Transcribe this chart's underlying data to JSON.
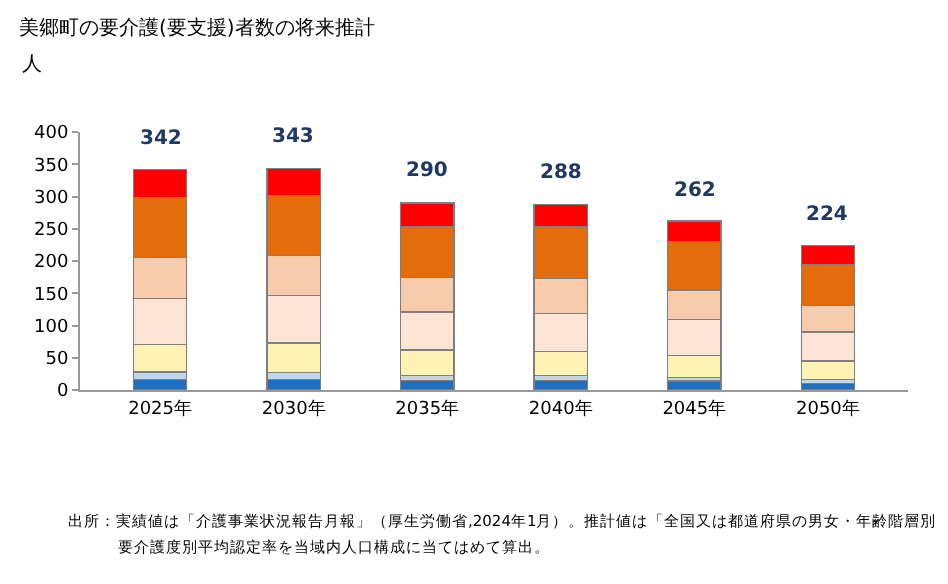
{
  "chart_data": {
    "type": "bar",
    "stacked": true,
    "title": "美郷町の要介護(要支援)者数の将来推計",
    "ylabel": "人",
    "categories": [
      "2025年",
      "2030年",
      "2035年",
      "2040年",
      "2045年",
      "2050年"
    ],
    "series": [
      {
        "color": "#1f6fc0",
        "values": [
          16,
          16,
          15,
          15,
          14,
          10
        ]
      },
      {
        "color": "#bdd7ee",
        "values": [
          12,
          11,
          8,
          7,
          6,
          6
        ]
      },
      {
        "color": "#fff2b3",
        "values": [
          43,
          46,
          39,
          38,
          33,
          29
        ]
      },
      {
        "color": "#fde4d4",
        "values": [
          71,
          74,
          59,
          59,
          56,
          45
        ]
      },
      {
        "color": "#f8cbad",
        "values": [
          63,
          62,
          54,
          54,
          46,
          41
        ]
      },
      {
        "color": "#e46c0a",
        "values": [
          94,
          93,
          79,
          80,
          75,
          64
        ]
      },
      {
        "color": "#ff0000",
        "values": [
          43,
          41,
          36,
          35,
          32,
          29
        ]
      }
    ],
    "totals": [
      "342",
      "343",
      "290",
      "288",
      "262",
      "224"
    ],
    "ylim": [
      0,
      400
    ],
    "yticks": [
      0,
      50,
      100,
      150,
      200,
      250,
      300,
      350,
      400
    ],
    "grid": false,
    "annotations": [
      "出所：実績値は「介護事業状況報告月報」（厚生労働省,2024年1月）。推計値は「全国又は都道府県の男女・年齢階層別",
      "要介護度別平均認定率を当域内人口構成に当てはめて算出。"
    ]
  }
}
